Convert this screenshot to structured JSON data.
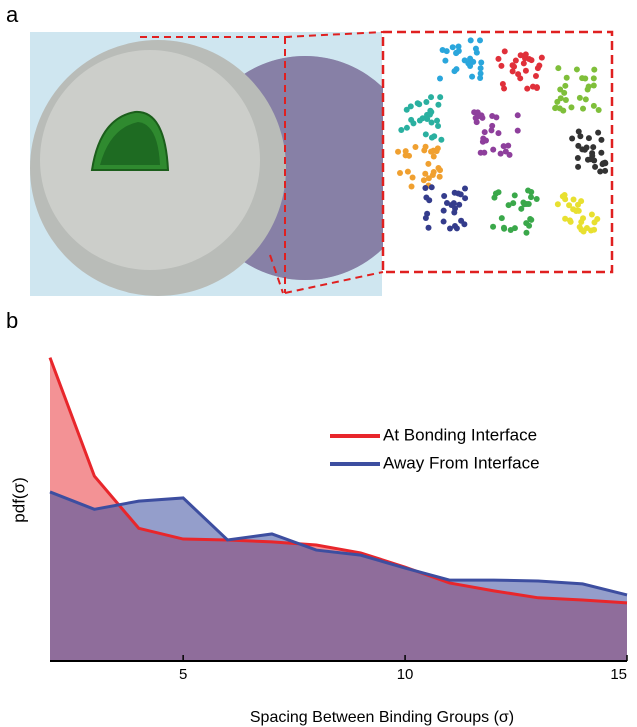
{
  "panels": {
    "a": "a",
    "b": "b"
  },
  "chart_data": {
    "type": "area",
    "xlabel": "Spacing Between Binding Groups (σ)",
    "ylabel": "pdf(σ)",
    "x": [
      2,
      3,
      4,
      5,
      6,
      7,
      8,
      9,
      10,
      11,
      12,
      13,
      14,
      15
    ],
    "series": [
      {
        "name": "At Bonding Interface",
        "color": "#e8262b",
        "values": [
          0.96,
          0.585,
          0.42,
          0.386,
          0.383,
          0.377,
          0.367,
          0.342,
          0.297,
          0.247,
          0.222,
          0.2,
          0.193,
          0.184
        ]
      },
      {
        "name": "Away From Interface",
        "color": "#3d4ea0",
        "values": [
          0.535,
          0.48,
          0.506,
          0.516,
          0.383,
          0.402,
          0.351,
          0.335,
          0.294,
          0.256,
          0.256,
          0.253,
          0.244,
          0.209
        ]
      }
    ],
    "xlim": [
      2,
      15
    ],
    "ylim": [
      0,
      1
    ],
    "xticks": [
      5,
      10,
      15
    ],
    "legend": "right"
  }
}
